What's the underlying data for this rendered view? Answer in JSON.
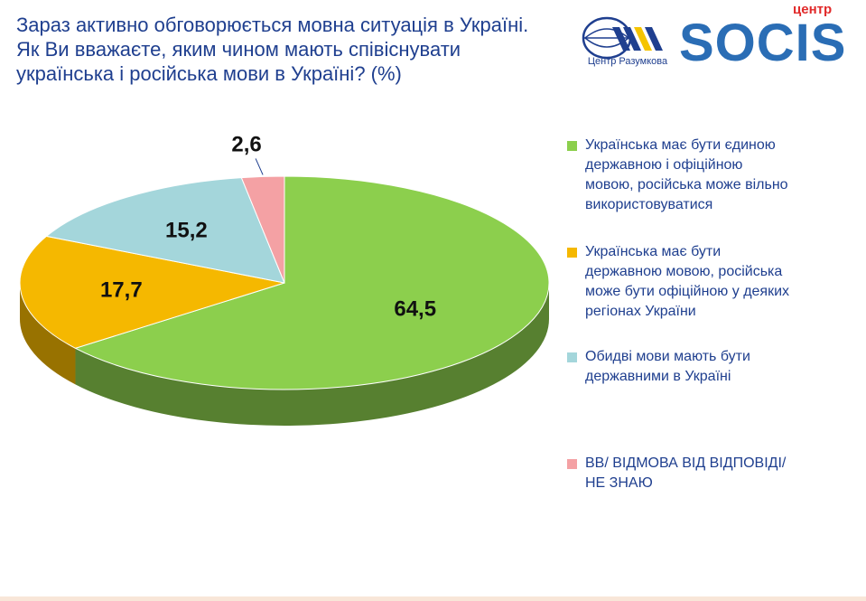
{
  "title": {
    "line1": "Зараз активно обговорюється мовна ситуація в Україні.",
    "line2": "Як Ви вважаєте, яким чином мають співіснувати",
    "line3": "українська і російська мови в Україні? (%)"
  },
  "logos": {
    "razumkov_label": "Центр Разумкова",
    "socis_top": "центр",
    "socis_main": "SOCIS"
  },
  "colors": {
    "title": "#1f3f8f",
    "green": "#8ccf4d",
    "orange": "#f5b800",
    "teal": "#a4d6db",
    "pink": "#f4a1a4"
  },
  "chart_data": {
    "type": "pie",
    "title": "",
    "slices": [
      {
        "label": "Українська має бути єдиною державною і офіційною мовою, російська може вільно використовуватися",
        "value": 64.5,
        "display": "64,5",
        "color": "#8ccf4d"
      },
      {
        "label": "Українська має бути державною мовою, російська може бути офіційною у деяких регіонах України",
        "value": 17.7,
        "display": "17,7",
        "color": "#f5b800"
      },
      {
        "label": "Обидві мови мають бути державними в Україні",
        "value": 15.2,
        "display": "15,2",
        "color": "#a4d6db"
      },
      {
        "label": "ВВ/ ВІДМОВА ВІД ВІДПОВІДІ/ НЕ ЗНАЮ",
        "value": 2.6,
        "display": "2,6",
        "color": "#f4a1a4"
      }
    ],
    "legend_position": "right",
    "style": "3d"
  },
  "legend": [
    {
      "lines": [
        "Українська має бути єдиною",
        "державною і офіційною",
        "мовою, російська може вільно",
        "використовуватися"
      ],
      "color": "#8ccf4d"
    },
    {
      "lines": [
        "Українська має бути",
        "державною мовою, російська",
        "може бути офіційною у деяких",
        "регіонах України"
      ],
      "color": "#f5b800"
    },
    {
      "lines": [
        "Обидві мови мають бути",
        "державними в Україні"
      ],
      "color": "#a4d6db"
    },
    {
      "lines": [
        "ВВ/ ВІДМОВА ВІД ВІДПОВІДІ/",
        "НЕ ЗНАЮ"
      ],
      "color": "#f4a1a4"
    }
  ]
}
